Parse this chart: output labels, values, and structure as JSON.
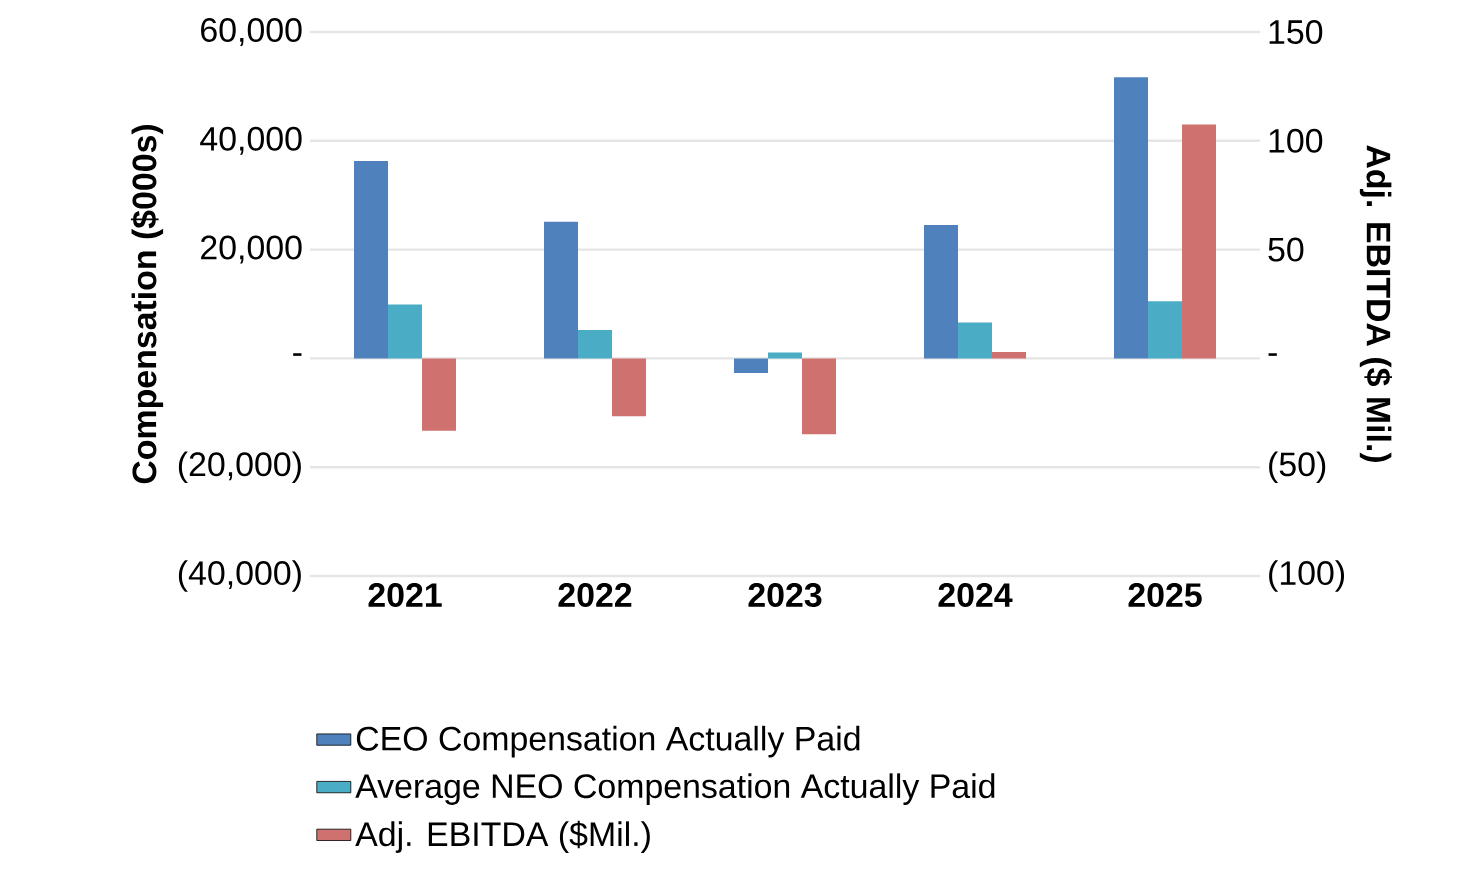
{
  "chart_data": {
    "type": "bar",
    "categories": [
      "2021",
      "2022",
      "2023",
      "2024",
      "2025"
    ],
    "ylabel": "Compensation ($000s)",
    "y2label": "Adj. EBITDA ($ Mil.)",
    "ylim": [
      -40000,
      60000
    ],
    "yticks": [
      {
        "value": -40000,
        "label": "(40,000)"
      },
      {
        "value": -20000,
        "label": "(20,000)"
      },
      {
        "value": 0,
        "label": "-"
      },
      {
        "value": 20000,
        "label": "20,000"
      },
      {
        "value": 40000,
        "label": "40,000"
      },
      {
        "value": 60000,
        "label": "60,000"
      }
    ],
    "y2lim": [
      -100,
      150
    ],
    "y2ticks": [
      {
        "value": -100,
        "label": "(100)"
      },
      {
        "value": -50,
        "label": "(50)"
      },
      {
        "value": 0,
        "label": "-"
      },
      50,
      100,
      150
    ],
    "series": [
      {
        "name": "CEO Compensation Actually Paid",
        "color": "#4f81bd",
        "values": [
          36300,
          25100,
          -2700,
          24500,
          51700
        ]
      },
      {
        "name": "Average NEO Compensation Actually Paid",
        "color": "#4bacc6",
        "values": [
          9900,
          5200,
          1100,
          6600,
          10500
        ]
      },
      {
        "name": "Adj. EBITDA ($Mil.)",
        "color": "#cf716f",
        "axis": "y2",
        "values": [
          -33.3,
          -26.6,
          -34.9,
          2.9,
          107.5
        ]
      }
    ],
    "grid": "y",
    "legend": "bottom"
  }
}
